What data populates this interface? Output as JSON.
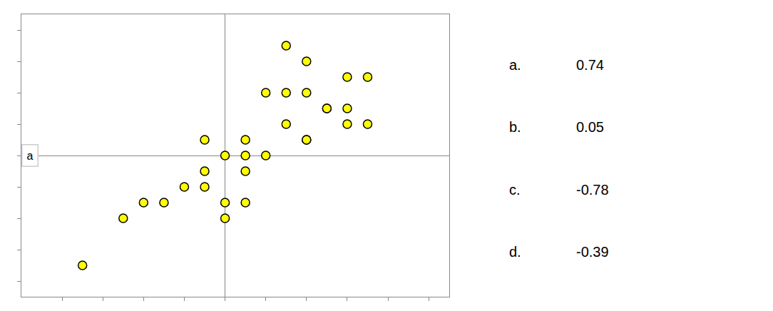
{
  "chart_data": {
    "type": "scatter",
    "x": [
      1.5,
      2.0,
      3.0,
      3.5,
      1.0,
      1.5,
      2.0,
      2.5,
      2.5,
      3.0,
      3.0,
      3.5,
      1.5,
      2.0,
      2.0,
      0.5,
      0.5,
      1.0,
      -1.0,
      -1.5,
      -2.0,
      -2.5,
      -0.5,
      -0.5,
      0.0,
      0.0,
      0.5,
      0.0,
      0.5,
      -0.5,
      -3.5
    ],
    "values": [
      3.5,
      3.0,
      2.5,
      2.5,
      2.0,
      2.0,
      2.0,
      1.5,
      1.5,
      1.5,
      1.0,
      1.0,
      1.0,
      0.5,
      0.5,
      0.0,
      0.5,
      0.0,
      -1.0,
      -1.5,
      -1.5,
      -2.0,
      -0.5,
      -1.0,
      -1.5,
      -2.0,
      -1.5,
      0.0,
      -0.5,
      0.5,
      -3.5
    ],
    "color": "#FFFF00",
    "marker": "circle",
    "xlim": [
      -5,
      5.5
    ],
    "ylim": [
      -4.5,
      4.5
    ],
    "xticks": [
      -4,
      -3,
      -2,
      -1,
      0,
      1,
      2,
      3,
      4,
      5
    ],
    "yticks": [
      -4,
      -3,
      -2,
      -1,
      0,
      1,
      2,
      3,
      4
    ],
    "tick_labels": false,
    "grid": false,
    "annotations": [
      "a",
      "a.",
      "0.74",
      "b.",
      "0.05",
      "c.",
      "-0.78",
      "d.",
      "-0.39"
    ]
  }
}
